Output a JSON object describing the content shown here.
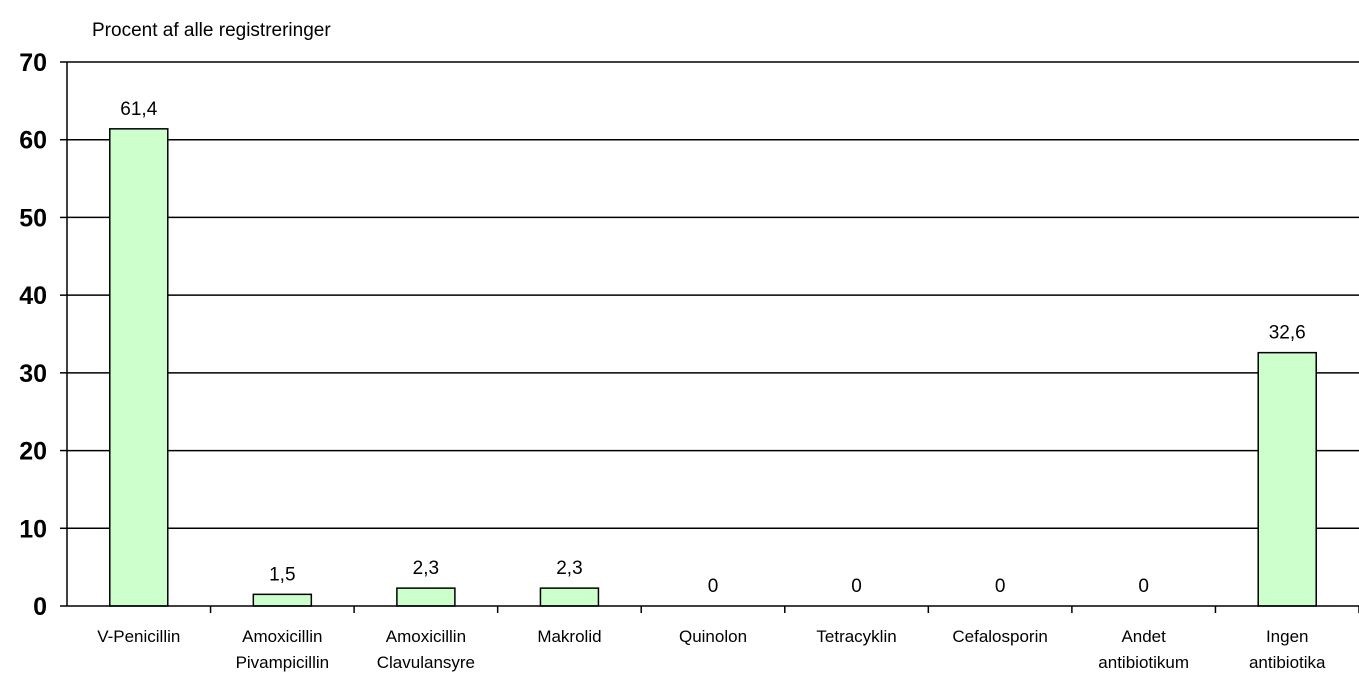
{
  "chart_data": {
    "type": "bar",
    "ylabel": "Procent af alle registreringer",
    "xlabel": "",
    "ylim": [
      0,
      70
    ],
    "yticks": [
      0,
      10,
      20,
      30,
      40,
      50,
      60,
      70
    ],
    "grid": true,
    "categories": [
      [
        "V-Penicillin"
      ],
      [
        "Amoxicillin",
        "Pivampicillin"
      ],
      [
        "Amoxicillin",
        "Clavulansyre"
      ],
      [
        "Makrolid"
      ],
      [
        "Quinolon"
      ],
      [
        "Tetracyklin"
      ],
      [
        "Cefalosporin"
      ],
      [
        "Andet",
        "antibiotikum"
      ],
      [
        "Ingen",
        "antibiotika"
      ]
    ],
    "values": [
      61.4,
      1.5,
      2.3,
      2.3,
      0,
      0,
      0,
      0,
      32.6
    ],
    "data_labels": [
      "61,4",
      "1,5",
      "2,3",
      "2,3",
      "0",
      "0",
      "0",
      "0",
      "32,6"
    ],
    "bar_color": "#ccffcc",
    "bar_stroke": "#000000"
  }
}
